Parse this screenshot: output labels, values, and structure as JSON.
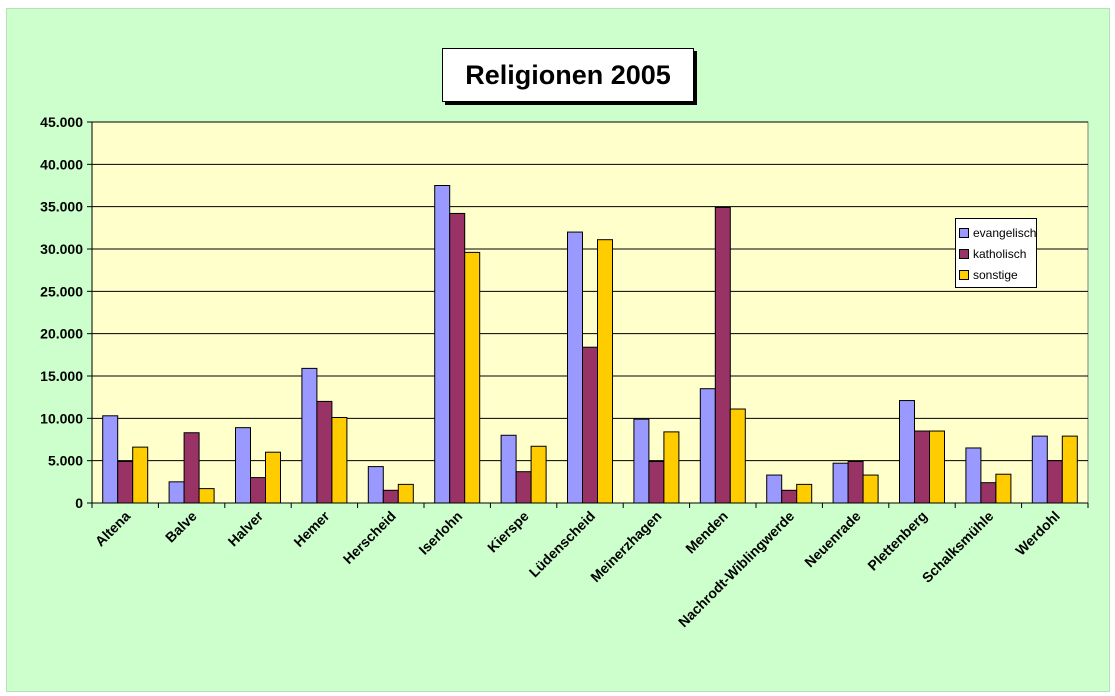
{
  "chart_data": {
    "type": "bar",
    "title": "Religionen 2005",
    "categories": [
      "Altena",
      "Balve",
      "Halver",
      "Hemer",
      "Herscheid",
      "Iserlohn",
      "Kierspe",
      "Lüdenscheid",
      "Meinerzhagen",
      "Menden",
      "Nachrodt-Wiblingwerde",
      "Neuenrade",
      "Plettenberg",
      "Schalksmühle",
      "Werdohl"
    ],
    "series": [
      {
        "name": "evangelisch",
        "color": "#9999ff",
        "values": [
          10300,
          2500,
          8900,
          15900,
          4300,
          37500,
          8000,
          32000,
          9900,
          13500,
          3300,
          4700,
          12100,
          6500,
          7900
        ]
      },
      {
        "name": "katholisch",
        "color": "#993366",
        "values": [
          4900,
          8300,
          3000,
          12000,
          1500,
          34200,
          3700,
          18400,
          4900,
          34900,
          1500,
          4900,
          8500,
          2400,
          5000
        ]
      },
      {
        "name": "sonstige",
        "color": "#ffcc00",
        "values": [
          6600,
          1700,
          6000,
          10100,
          2200,
          29600,
          6700,
          31100,
          8400,
          11100,
          2200,
          3300,
          8500,
          3400,
          7900
        ]
      }
    ],
    "ylim": [
      0,
      45000
    ],
    "yticks": [
      "0",
      "5.000",
      "10.000",
      "15.000",
      "20.000",
      "25.000",
      "30.000",
      "35.000",
      "40.000",
      "45.000"
    ],
    "ytick_values": [
      0,
      5000,
      10000,
      15000,
      20000,
      25000,
      30000,
      35000,
      40000,
      45000
    ],
    "xlabel": "",
    "ylabel": "",
    "legend_position": "right",
    "grid": true,
    "plot_background": "#ffffcc",
    "chart_background": "#ccffcc"
  }
}
